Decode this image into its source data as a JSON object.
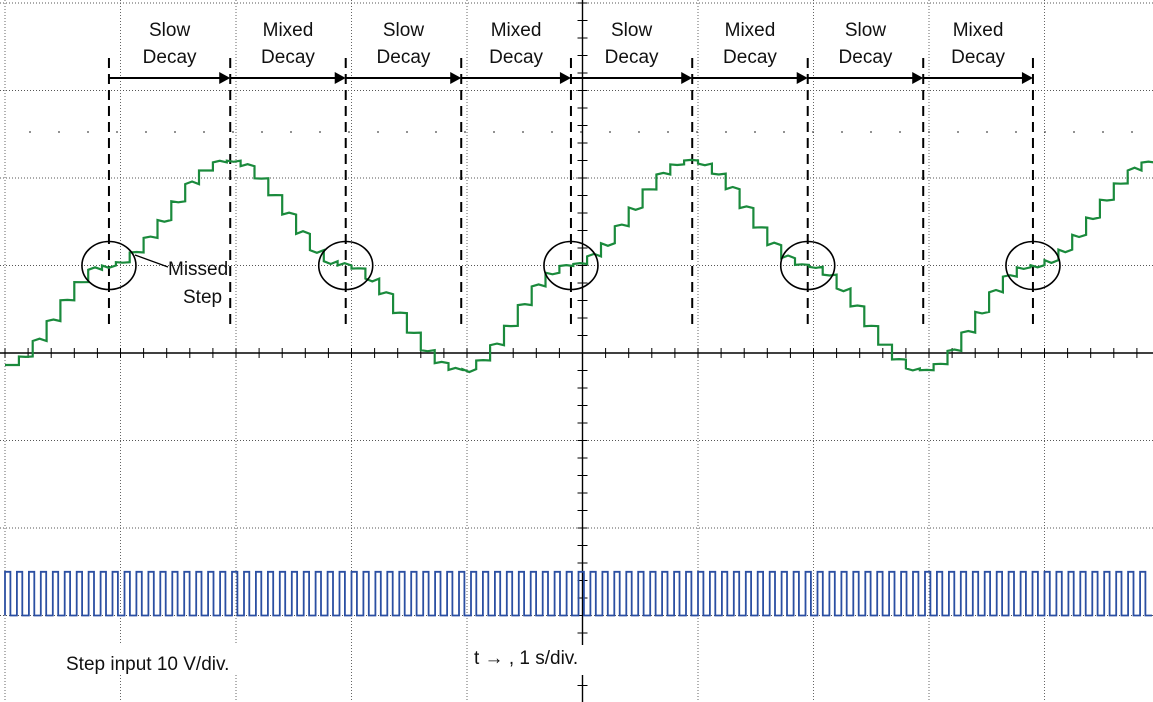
{
  "chart_data": {
    "type": "line",
    "title": "",
    "x_scale_label": "t → , 1 s/div.",
    "y_scale_label": "Step input 10 V/div.",
    "grid": true,
    "divisions": {
      "x": 10,
      "y": 8
    },
    "phases": [
      {
        "line1": "Slow",
        "line2": "Decay"
      },
      {
        "line1": "Mixed",
        "line2": "Decay"
      },
      {
        "line1": "Slow",
        "line2": "Decay"
      },
      {
        "line1": "Mixed",
        "line2": "Decay"
      },
      {
        "line1": "Slow",
        "line2": "Decay"
      },
      {
        "line1": "Mixed",
        "line2": "Decay"
      },
      {
        "line1": "Slow",
        "line2": "Decay"
      },
      {
        "line1": "Mixed",
        "line2": "Decay"
      }
    ],
    "phase_boundaries_div": [
      0.9,
      1.95,
      2.95,
      3.95,
      4.9,
      5.95,
      6.95,
      7.95,
      8.9
    ],
    "annotation": {
      "line1": "Missed",
      "line2": "Step"
    },
    "missed_step_times_div": [
      0.9,
      2.95,
      4.9,
      6.95,
      8.9
    ],
    "series": [
      {
        "name": "",
        "color": "#1a8a3c",
        "description_values": "stepped sinusoid, one period ≈ 3.95 div",
        "x_div": [
          0,
          0.9,
          1.95,
          2.95,
          3.95,
          4.9,
          5.95,
          6.95,
          7.95,
          8.9,
          10
        ],
        "y_div": [
          -0.15,
          1.0,
          2.2,
          1.0,
          -0.2,
          1.0,
          2.2,
          1.0,
          -0.2,
          1.0,
          2.2
        ]
      },
      {
        "name": "",
        "color": "#2b4fa2",
        "description_values": "square-wave step pulses",
        "pulse_count": 96,
        "high_div": -2.5,
        "low_div": -3.0
      }
    ]
  }
}
